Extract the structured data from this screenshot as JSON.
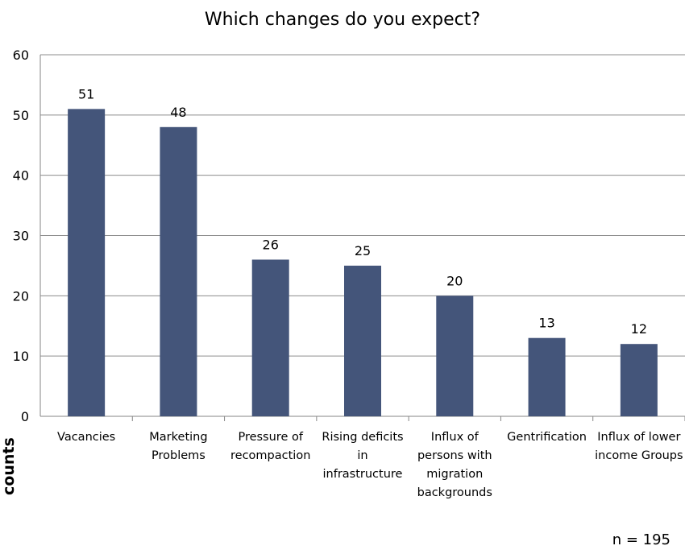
{
  "chart_data": {
    "type": "bar",
    "title": "Which changes do you expect?",
    "ylabel": "counts",
    "xlabel": "",
    "categories": [
      [
        "Vacancies"
      ],
      [
        "Marketing",
        "Problems"
      ],
      [
        "Pressure of",
        "recompaction"
      ],
      [
        "Rising deficits",
        "in",
        "infrastructure"
      ],
      [
        "Influx of",
        "persons with",
        "migration",
        "backgrounds"
      ],
      [
        "Gentrification"
      ],
      [
        "Influx of lower",
        "income Groups"
      ]
    ],
    "values": [
      51,
      48,
      26,
      25,
      20,
      13,
      12
    ],
    "ylim": [
      0,
      60
    ],
    "yticks": [
      0,
      10,
      20,
      30,
      40,
      50,
      60
    ],
    "grid": true,
    "bar_color": "#44557a",
    "note": "n = 195"
  }
}
